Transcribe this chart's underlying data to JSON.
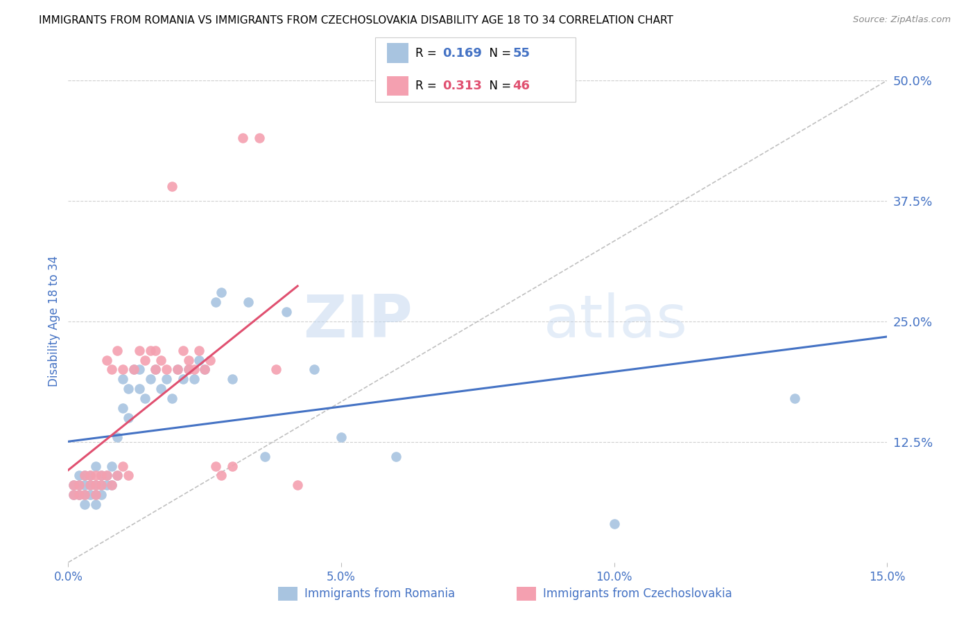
{
  "title": "IMMIGRANTS FROM ROMANIA VS IMMIGRANTS FROM CZECHOSLOVAKIA DISABILITY AGE 18 TO 34 CORRELATION CHART",
  "source": "Source: ZipAtlas.com",
  "xlabel_romania": "Immigrants from Romania",
  "xlabel_czechoslovakia": "Immigrants from Czechoslovakia",
  "ylabel": "Disability Age 18 to 34",
  "xlim": [
    0.0,
    0.15
  ],
  "ylim": [
    0.0,
    0.5
  ],
  "xticks": [
    0.0,
    0.05,
    0.1,
    0.15
  ],
  "xticklabels": [
    "0.0%",
    "5.0%",
    "10.0%",
    "15.0%"
  ],
  "yticks": [
    0.125,
    0.25,
    0.375,
    0.5
  ],
  "yticklabels": [
    "12.5%",
    "25.0%",
    "37.5%",
    "50.0%"
  ],
  "color_romania": "#a8c4e0",
  "color_czechoslovakia": "#f4a0b0",
  "color_line_romania": "#4472c4",
  "color_line_czechoslovakia": "#e05070",
  "color_tick_labels": "#4472c4",
  "R_romania": 0.169,
  "N_romania": 55,
  "R_czechoslovakia": 0.313,
  "N_czechoslovakia": 46,
  "romania_x": [
    0.001,
    0.001,
    0.002,
    0.002,
    0.002,
    0.003,
    0.003,
    0.003,
    0.003,
    0.004,
    0.004,
    0.004,
    0.005,
    0.005,
    0.005,
    0.005,
    0.006,
    0.006,
    0.006,
    0.007,
    0.007,
    0.008,
    0.008,
    0.009,
    0.009,
    0.01,
    0.01,
    0.011,
    0.011,
    0.012,
    0.013,
    0.013,
    0.014,
    0.015,
    0.016,
    0.017,
    0.018,
    0.019,
    0.02,
    0.021,
    0.022,
    0.023,
    0.024,
    0.025,
    0.027,
    0.028,
    0.03,
    0.033,
    0.036,
    0.04,
    0.045,
    0.05,
    0.06,
    0.1,
    0.133
  ],
  "romania_y": [
    0.07,
    0.08,
    0.07,
    0.08,
    0.09,
    0.06,
    0.07,
    0.08,
    0.09,
    0.07,
    0.08,
    0.09,
    0.06,
    0.07,
    0.08,
    0.1,
    0.07,
    0.08,
    0.09,
    0.08,
    0.09,
    0.1,
    0.08,
    0.09,
    0.13,
    0.16,
    0.19,
    0.15,
    0.18,
    0.2,
    0.18,
    0.2,
    0.17,
    0.19,
    0.2,
    0.18,
    0.19,
    0.17,
    0.2,
    0.19,
    0.2,
    0.19,
    0.21,
    0.2,
    0.27,
    0.28,
    0.19,
    0.27,
    0.11,
    0.26,
    0.2,
    0.13,
    0.11,
    0.04,
    0.17
  ],
  "czechoslovakia_x": [
    0.001,
    0.001,
    0.002,
    0.002,
    0.003,
    0.003,
    0.004,
    0.004,
    0.005,
    0.005,
    0.005,
    0.006,
    0.006,
    0.007,
    0.007,
    0.008,
    0.008,
    0.009,
    0.009,
    0.01,
    0.01,
    0.011,
    0.012,
    0.013,
    0.014,
    0.015,
    0.016,
    0.016,
    0.017,
    0.018,
    0.019,
    0.02,
    0.021,
    0.022,
    0.022,
    0.023,
    0.024,
    0.025,
    0.026,
    0.027,
    0.028,
    0.03,
    0.032,
    0.035,
    0.038,
    0.042
  ],
  "czechoslovakia_y": [
    0.07,
    0.08,
    0.07,
    0.08,
    0.07,
    0.09,
    0.08,
    0.09,
    0.07,
    0.08,
    0.09,
    0.08,
    0.09,
    0.09,
    0.21,
    0.08,
    0.2,
    0.09,
    0.22,
    0.1,
    0.2,
    0.09,
    0.2,
    0.22,
    0.21,
    0.22,
    0.2,
    0.22,
    0.21,
    0.2,
    0.39,
    0.2,
    0.22,
    0.2,
    0.21,
    0.2,
    0.22,
    0.2,
    0.21,
    0.1,
    0.09,
    0.1,
    0.44,
    0.44,
    0.2,
    0.08
  ],
  "watermark_zip": "ZIP",
  "watermark_atlas": "atlas",
  "background_color": "#ffffff",
  "grid_color": "#d0d0d0"
}
